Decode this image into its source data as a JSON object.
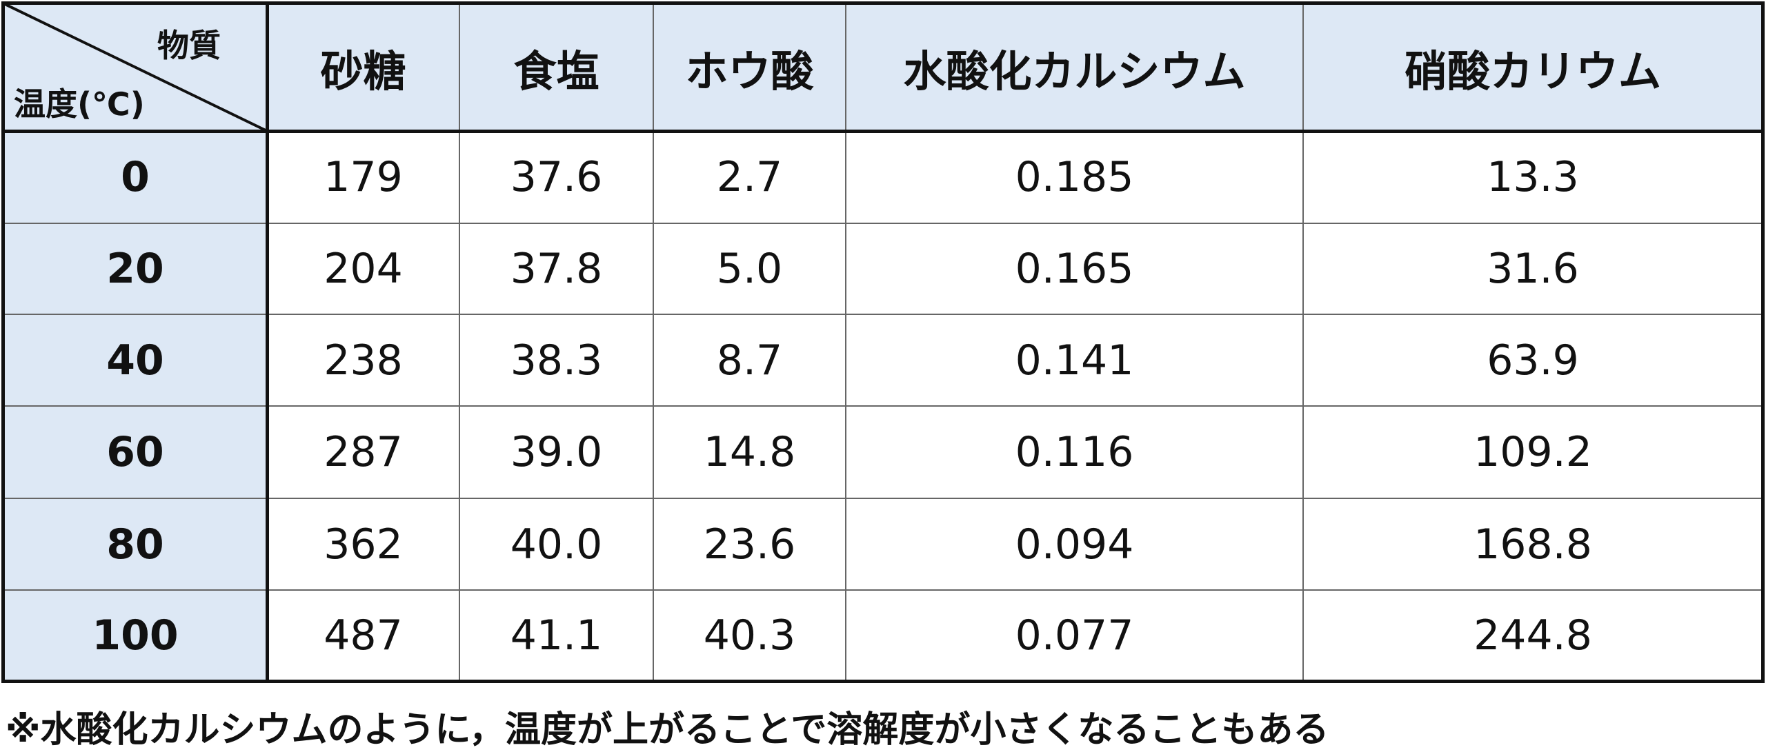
{
  "header": {
    "corner_top": "物質",
    "corner_bottom": "温度(℃)",
    "columns": [
      "砂糖",
      "食塩",
      "ホウ酸",
      "水酸化カルシウム",
      "硝酸カリウム"
    ]
  },
  "table": {
    "rows": [
      [
        "0",
        "179",
        "37.6",
        "2.7",
        "0.185",
        "13.3"
      ],
      [
        "20",
        "204",
        "37.8",
        "5.0",
        "0.165",
        "31.6"
      ],
      [
        "40",
        "238",
        "38.3",
        "8.7",
        "0.141",
        "63.9"
      ],
      [
        "60",
        "287",
        "39.0",
        "14.8",
        "0.116",
        "109.2"
      ],
      [
        "80",
        "362",
        "40.0",
        "23.6",
        "0.094",
        "168.8"
      ],
      [
        "100",
        "487",
        "41.1",
        "40.3",
        "0.077",
        "244.8"
      ]
    ]
  },
  "footnote": "※水酸化カルシウムのように，温度が上がることで溶解度が小さくなることもある"
}
